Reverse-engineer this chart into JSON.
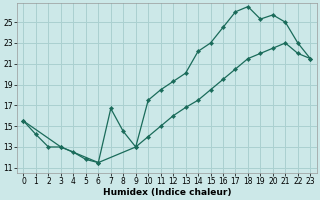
{
  "xlabel": "Humidex (Indice chaleur)",
  "bg_color": "#cce8e8",
  "grid_color": "#aad0d0",
  "line_color": "#1a6b5a",
  "xlim": [
    -0.5,
    23.5
  ],
  "ylim": [
    10.5,
    26.8
  ],
  "xticks": [
    0,
    1,
    2,
    3,
    4,
    5,
    6,
    7,
    8,
    9,
    10,
    11,
    12,
    13,
    14,
    15,
    16,
    17,
    18,
    19,
    20,
    21,
    22,
    23
  ],
  "yticks": [
    11,
    13,
    15,
    17,
    19,
    21,
    23,
    25
  ],
  "line1_x": [
    0,
    1,
    2,
    3,
    4,
    5,
    6,
    7,
    8,
    9,
    10,
    11,
    12,
    13,
    14,
    15,
    16,
    17,
    18,
    19,
    20,
    21,
    22,
    23
  ],
  "line1_y": [
    15.5,
    14.2,
    13.0,
    13.0,
    12.5,
    11.8,
    11.5,
    16.7,
    14.5,
    13.0,
    17.5,
    18.5,
    19.3,
    20.1,
    22.2,
    23.0,
    24.5,
    26.0,
    26.5,
    25.3,
    25.7,
    25.0,
    23.0,
    21.5
  ],
  "line2_x": [
    0,
    3,
    6,
    9,
    10,
    11,
    12,
    13,
    14,
    15,
    16,
    17,
    18,
    19,
    20,
    21,
    22,
    23
  ],
  "line2_y": [
    15.5,
    13.0,
    11.5,
    13.0,
    14.0,
    15.0,
    16.0,
    16.8,
    17.5,
    18.5,
    19.5,
    20.5,
    21.5,
    22.0,
    22.5,
    23.0,
    22.0,
    21.5
  ],
  "xlabel_fontsize": 6.5,
  "tick_fontsize": 5.5
}
